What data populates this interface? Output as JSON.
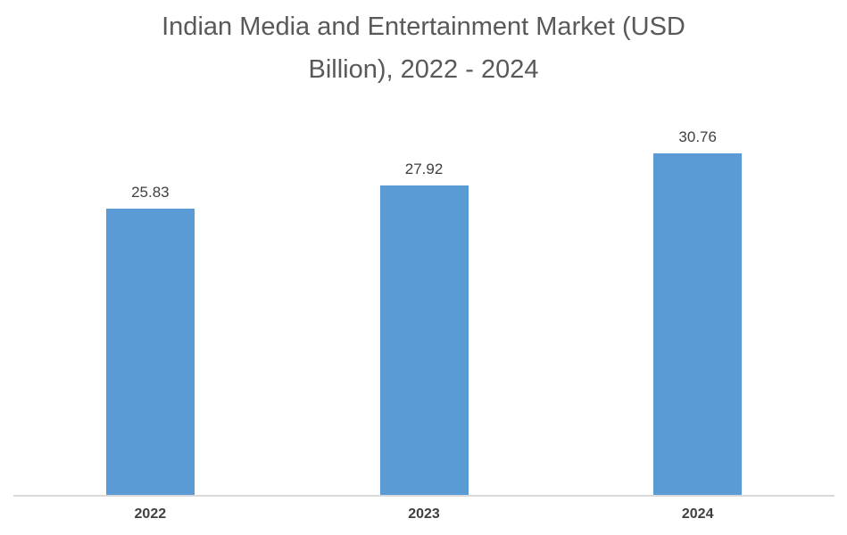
{
  "chart_data": {
    "type": "bar",
    "title": "Indian Media and Entertainment Market (USD Billion), 2022 - 2024",
    "title_lines": [
      "Indian Media and Entertainment Market (USD",
      "Billion), 2022 - 2024"
    ],
    "categories": [
      "2022",
      "2023",
      "2024"
    ],
    "values": [
      25.83,
      27.92,
      30.76
    ],
    "value_labels": [
      "25.83",
      "27.92",
      "30.76"
    ],
    "xlabel": "",
    "ylabel": "",
    "ylim": [
      0,
      35
    ],
    "grid": false,
    "legend": "none",
    "y_axis_visible": false,
    "data_labels_position": "outside-end",
    "colors": {
      "bar": "#5B9BD5",
      "title": "#595959",
      "data_label": "#404040",
      "category_label": "#404040",
      "axis_line": "#D9D9D9",
      "background": "#FFFFFF"
    }
  }
}
